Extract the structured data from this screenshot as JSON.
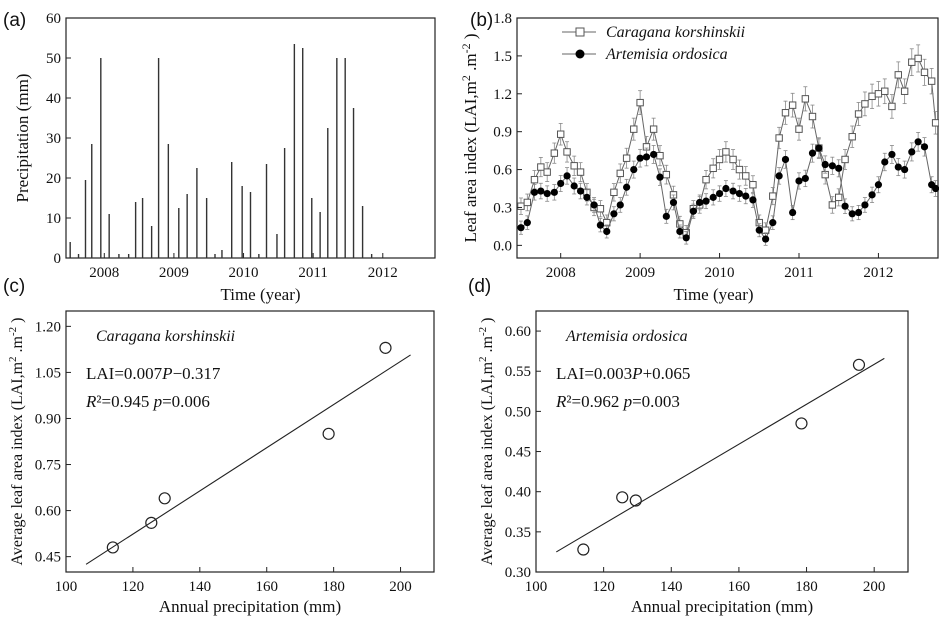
{
  "chart_data": [
    {
      "panel_label": "(a)",
      "type": "bar",
      "xlabel": "Time (year)",
      "ylabel": "Precipitation (mm)",
      "ylim": [
        0,
        60
      ],
      "yticks": [
        0,
        10,
        20,
        30,
        40,
        50,
        60
      ],
      "xlim": [
        2007.45,
        2012.75
      ],
      "xtick_labels": [
        "2008",
        "2009",
        "2010",
        "2011",
        "2012"
      ],
      "xtick_values": [
        2008,
        2009,
        2010,
        2011,
        2012
      ],
      "grid": false,
      "x": [
        2007.51,
        2007.63,
        2007.73,
        2007.82,
        2007.95,
        2008.07,
        2008.21,
        2008.35,
        2008.45,
        2008.55,
        2008.68,
        2008.78,
        2008.92,
        2009.07,
        2009.19,
        2009.33,
        2009.47,
        2009.59,
        2009.69,
        2009.83,
        2009.98,
        2010.1,
        2010.22,
        2010.33,
        2010.48,
        2010.59,
        2010.73,
        2010.85,
        2010.98,
        2011.1,
        2011.21,
        2011.34,
        2011.46,
        2011.58,
        2011.71,
        2011.84,
        2011.98,
        2012.1,
        2012.22,
        2012.35
      ],
      "values": [
        4,
        1,
        19.5,
        28.5,
        50,
        11,
        1,
        1,
        14,
        15,
        8,
        50,
        28.5,
        12.5,
        16,
        22.5,
        15,
        1,
        2,
        24,
        18,
        16.5,
        1,
        23.5,
        6,
        27.5,
        53.5,
        52.5,
        15,
        11.5,
        32.5,
        50,
        50,
        37.5,
        13,
        1,
        0,
        0,
        0,
        0
      ]
    },
    {
      "panel_label": "(b)",
      "type": "line",
      "xlabel": "Time (year)",
      "ylabel": "Leaf area index (LAI,m .m )",
      "ylabel_sup1": "2",
      "ylabel_sup2": "-2",
      "ylim": [
        -0.1,
        1.8
      ],
      "yticks": [
        0.0,
        0.3,
        0.6,
        0.9,
        1.2,
        1.5,
        1.8
      ],
      "ytick_labels": [
        "0.0",
        "0.3",
        "0.6",
        "0.9",
        "1.2",
        "1.5",
        "1.8"
      ],
      "xlim": [
        2007.45,
        2012.75
      ],
      "xtick_labels": [
        "2008",
        "2009",
        "2010",
        "2011",
        "2012"
      ],
      "xtick_values": [
        2008,
        2009,
        2010,
        2011,
        2012
      ],
      "grid": false,
      "legend_position": "top-center",
      "series": [
        {
          "name": "Caragana korshinskii",
          "marker": "open-square",
          "x": [
            2007.5,
            2007.58,
            2007.67,
            2007.75,
            2007.83,
            2007.92,
            2008.0,
            2008.08,
            2008.17,
            2008.25,
            2008.33,
            2008.42,
            2008.5,
            2008.58,
            2008.67,
            2008.75,
            2008.83,
            2008.92,
            2009.0,
            2009.08,
            2009.17,
            2009.25,
            2009.33,
            2009.42,
            2009.5,
            2009.58,
            2009.67,
            2009.75,
            2009.83,
            2009.92,
            2010.0,
            2010.08,
            2010.17,
            2010.25,
            2010.33,
            2010.42,
            2010.5,
            2010.58,
            2010.67,
            2010.75,
            2010.83,
            2010.92,
            2011.0,
            2011.08,
            2011.17,
            2011.25,
            2011.33,
            2011.42,
            2011.5,
            2011.58,
            2011.67,
            2011.75,
            2011.83,
            2011.92,
            2012.0,
            2012.08,
            2012.17,
            2012.25,
            2012.33,
            2012.42,
            2012.5,
            2012.58,
            2012.67,
            2012.72
          ],
          "values": [
            0.31,
            0.34,
            0.52,
            0.62,
            0.58,
            0.73,
            0.88,
            0.74,
            0.63,
            0.58,
            0.42,
            0.3,
            0.29,
            0.18,
            0.42,
            0.57,
            0.69,
            0.92,
            1.13,
            0.78,
            0.92,
            0.71,
            0.56,
            0.4,
            0.17,
            0.1,
            0.29,
            0.32,
            0.52,
            0.61,
            0.68,
            0.74,
            0.68,
            0.6,
            0.55,
            0.48,
            0.18,
            0.12,
            0.39,
            0.85,
            1.05,
            1.11,
            0.92,
            1.16,
            1.02,
            0.77,
            0.56,
            0.32,
            0.38,
            0.68,
            0.86,
            1.04,
            1.12,
            1.18,
            1.2,
            1.22,
            1.1,
            1.35,
            1.22,
            1.45,
            1.48,
            1.37,
            1.3,
            0.97
          ]
        },
        {
          "name": "Artemisia ordosica",
          "marker": "filled-circle",
          "x": [
            2007.5,
            2007.58,
            2007.67,
            2007.75,
            2007.83,
            2007.92,
            2008.0,
            2008.08,
            2008.17,
            2008.25,
            2008.33,
            2008.42,
            2008.5,
            2008.58,
            2008.67,
            2008.75,
            2008.83,
            2008.92,
            2009.0,
            2009.08,
            2009.17,
            2009.25,
            2009.33,
            2009.42,
            2009.5,
            2009.58,
            2009.67,
            2009.75,
            2009.83,
            2009.92,
            2010.0,
            2010.08,
            2010.17,
            2010.25,
            2010.33,
            2010.42,
            2010.5,
            2010.58,
            2010.67,
            2010.75,
            2010.83,
            2010.92,
            2011.0,
            2011.08,
            2011.17,
            2011.25,
            2011.33,
            2011.42,
            2011.5,
            2011.58,
            2011.67,
            2011.75,
            2011.83,
            2011.92,
            2012.0,
            2012.08,
            2012.17,
            2012.25,
            2012.33,
            2012.42,
            2012.5,
            2012.58,
            2012.67,
            2012.72
          ],
          "values": [
            0.14,
            0.18,
            0.42,
            0.43,
            0.41,
            0.42,
            0.49,
            0.55,
            0.47,
            0.43,
            0.38,
            0.32,
            0.16,
            0.11,
            0.25,
            0.32,
            0.46,
            0.6,
            0.69,
            0.7,
            0.72,
            0.54,
            0.23,
            0.34,
            0.11,
            0.06,
            0.27,
            0.34,
            0.35,
            0.38,
            0.41,
            0.45,
            0.43,
            0.41,
            0.39,
            0.36,
            0.12,
            0.05,
            0.18,
            0.55,
            0.68,
            0.26,
            0.51,
            0.53,
            0.73,
            0.77,
            0.64,
            0.63,
            0.61,
            0.31,
            0.25,
            0.26,
            0.32,
            0.4,
            0.48,
            0.66,
            0.72,
            0.62,
            0.6,
            0.74,
            0.82,
            0.78,
            0.48,
            0.45
          ]
        }
      ]
    },
    {
      "panel_label": "(c)",
      "type": "scatter",
      "xlabel": "Annual precipitation (mm)",
      "ylabel": "Average leaf area index (LAI,m .m )",
      "ylabel_sup1": "2",
      "ylabel_sup2": "-2",
      "xlim": [
        100,
        210
      ],
      "ylim": [
        0.4,
        1.25
      ],
      "xticks": [
        100,
        120,
        140,
        160,
        180,
        200
      ],
      "yticks": [
        0.45,
        0.6,
        0.75,
        0.9,
        1.05,
        1.2
      ],
      "ytick_labels": [
        "0.45",
        "0.60",
        "0.75",
        "0.90",
        "1.05",
        "1.20"
      ],
      "annotation_species": "Caragana korshinskii",
      "annotation_equation": "LAI=0.007P−0.317",
      "annotation_stats": "R²=0.945  p=0.006",
      "x": [
        114,
        125.5,
        129.5,
        178.5,
        195.5
      ],
      "y": [
        0.48,
        0.56,
        0.64,
        0.85,
        1.13
      ],
      "fit_line": {
        "x": [
          106,
          203
        ],
        "y": [
          0.425,
          1.107
        ]
      }
    },
    {
      "panel_label": "(d)",
      "type": "scatter",
      "xlabel": "Annual precipitation (mm)",
      "ylabel": "Average leaf area index (LAI,m .m )",
      "ylabel_sup1": "2",
      "ylabel_sup2": "-2",
      "xlim": [
        100,
        210
      ],
      "ylim": [
        0.3,
        0.625
      ],
      "xticks": [
        100,
        120,
        140,
        160,
        180,
        200
      ],
      "yticks": [
        0.3,
        0.35,
        0.4,
        0.45,
        0.5,
        0.55,
        0.6
      ],
      "ytick_labels": [
        "0.30",
        "0.35",
        "0.40",
        "0.45",
        "0.50",
        "0.55",
        "0.60"
      ],
      "annotation_species": "Artemisia ordosica",
      "annotation_equation": "LAI=0.003P+0.065",
      "annotation_stats": "R²=0.962  p=0.003",
      "x": [
        114,
        125.5,
        129.5,
        178.5,
        195.5
      ],
      "y": [
        0.328,
        0.393,
        0.389,
        0.485,
        0.558
      ],
      "fit_line": {
        "x": [
          106,
          203
        ],
        "y": [
          0.325,
          0.566
        ]
      }
    }
  ]
}
